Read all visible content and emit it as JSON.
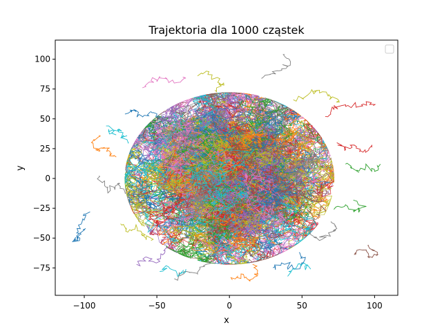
{
  "chart_data": {
    "type": "line",
    "title": "Trajektoria dla 1000 cząstek",
    "xlabel": "x",
    "ylabel": "y",
    "xlim": [
      -120,
      116
    ],
    "ylim": [
      -98,
      116
    ],
    "xticks": [
      -100,
      -50,
      0,
      50,
      100
    ],
    "xtick_labels": [
      "−100",
      "−50",
      "0",
      "50",
      "100"
    ],
    "yticks": [
      -75,
      -50,
      -25,
      0,
      25,
      50,
      75,
      100
    ],
    "ytick_labels": [
      "−75",
      "−50",
      "−25",
      "0",
      "25",
      "50",
      "75",
      "100"
    ],
    "grid": false,
    "legend": {
      "placement": "top-right",
      "entries": []
    },
    "n_trajectories": 1000,
    "colors": [
      "#1f77b4",
      "#ff7f0e",
      "#2ca02c",
      "#d62728",
      "#9467bd",
      "#8c564b",
      "#e377c2",
      "#7f7f7f",
      "#bcbd22",
      "#17becf"
    ],
    "series": [
      {
        "points": [
          [
            -96,
            -28
          ],
          [
            -101,
            -34
          ],
          [
            -105,
            -42
          ],
          [
            -103,
            -50
          ],
          [
            -108,
            -53
          ],
          [
            -103,
            -47
          ],
          [
            -99,
            -42
          ]
        ],
        "color": "#1f77b4"
      },
      {
        "points": [
          [
            -90,
            36
          ],
          [
            -95,
            30
          ],
          [
            -92,
            24
          ],
          [
            -86,
            26
          ],
          [
            -82,
            22
          ],
          [
            -78,
            18
          ]
        ],
        "color": "#ff7f0e"
      },
      {
        "points": [
          [
            -85,
            44
          ],
          [
            -81,
            38
          ],
          [
            -77,
            41
          ],
          [
            -73,
            36
          ],
          [
            -70,
            30
          ]
        ],
        "color": "#17becf"
      },
      {
        "points": [
          [
            -90,
            2
          ],
          [
            -86,
            -6
          ],
          [
            -82,
            -10
          ],
          [
            -76,
            -4
          ],
          [
            -72,
            -12
          ]
        ],
        "color": "#7f7f7f"
      },
      {
        "points": [
          [
            -75,
            -38
          ],
          [
            -70,
            -45
          ],
          [
            -64,
            -40
          ],
          [
            -60,
            -48
          ],
          [
            -54,
            -52
          ]
        ],
        "color": "#bcbd22"
      },
      {
        "points": [
          [
            -64,
            -72
          ],
          [
            -58,
            -66
          ],
          [
            -52,
            -70
          ],
          [
            -46,
            -64
          ],
          [
            -42,
            -58
          ]
        ],
        "color": "#9467bd"
      },
      {
        "points": [
          [
            -38,
            -84
          ],
          [
            -30,
            -78
          ],
          [
            -22,
            -80
          ],
          [
            -16,
            -72
          ],
          [
            -10,
            -66
          ]
        ],
        "color": "#7f7f7f"
      },
      {
        "points": [
          [
            2,
            -85
          ],
          [
            8,
            -80
          ],
          [
            14,
            -86
          ],
          [
            20,
            -80
          ],
          [
            16,
            -72
          ]
        ],
        "color": "#ff7f0e"
      },
      {
        "points": [
          [
            30,
            -75
          ],
          [
            38,
            -72
          ],
          [
            46,
            -76
          ],
          [
            52,
            -68
          ],
          [
            48,
            -62
          ]
        ],
        "color": "#1f77b4"
      },
      {
        "points": [
          [
            56,
            -46
          ],
          [
            62,
            -52
          ],
          [
            68,
            -48
          ],
          [
            74,
            -42
          ],
          [
            70,
            -36
          ]
        ],
        "color": "#7f7f7f"
      },
      {
        "points": [
          [
            86,
            -64
          ],
          [
            92,
            -60
          ],
          [
            98,
            -66
          ],
          [
            102,
            -62
          ],
          [
            96,
            -56
          ]
        ],
        "color": "#8c564b"
      },
      {
        "points": [
          [
            72,
            -26
          ],
          [
            80,
            -22
          ],
          [
            86,
            -28
          ],
          [
            92,
            -24
          ],
          [
            86,
            -18
          ]
        ],
        "color": "#2ca02c"
      },
      {
        "points": [
          [
            80,
            12
          ],
          [
            88,
            6
          ],
          [
            94,
            10
          ],
          [
            100,
            6
          ],
          [
            104,
            12
          ]
        ],
        "color": "#2ca02c"
      },
      {
        "points": [
          [
            74,
            30
          ],
          [
            80,
            24
          ],
          [
            86,
            28
          ],
          [
            92,
            22
          ],
          [
            98,
            26
          ]
        ],
        "color": "#d62728"
      },
      {
        "points": [
          [
            66,
            52
          ],
          [
            72,
            58
          ],
          [
            80,
            62
          ],
          [
            88,
            60
          ],
          [
            96,
            64
          ],
          [
            100,
            62
          ]
        ],
        "color": "#d62728"
      },
      {
        "points": [
          [
            44,
            66
          ],
          [
            54,
            70
          ],
          [
            62,
            74
          ],
          [
            70,
            68
          ],
          [
            76,
            64
          ]
        ],
        "color": "#bcbd22"
      },
      {
        "points": [
          [
            22,
            84
          ],
          [
            30,
            88
          ],
          [
            36,
            92
          ],
          [
            42,
            98
          ],
          [
            38,
            104
          ]
        ],
        "color": "#7f7f7f"
      },
      {
        "points": [
          [
            -22,
            86
          ],
          [
            -16,
            90
          ],
          [
            -10,
            84
          ],
          [
            -4,
            80
          ],
          [
            -10,
            74
          ]
        ],
        "color": "#bcbd22"
      },
      {
        "points": [
          [
            -60,
            76
          ],
          [
            -54,
            82
          ],
          [
            -46,
            84
          ],
          [
            -38,
            80
          ],
          [
            -30,
            84
          ]
        ],
        "color": "#e377c2"
      },
      {
        "points": [
          [
            -72,
            54
          ],
          [
            -66,
            58
          ],
          [
            -60,
            52
          ],
          [
            -54,
            56
          ],
          [
            -48,
            50
          ]
        ],
        "color": "#1f77b4"
      },
      {
        "points": [
          [
            6,
            -58
          ],
          [
            -4,
            -50
          ],
          [
            -12,
            -58
          ],
          [
            -20,
            -52
          ],
          [
            -26,
            -60
          ]
        ],
        "color": "#e377c2"
      },
      {
        "points": [
          [
            40,
            -82
          ],
          [
            44,
            -76
          ],
          [
            50,
            -72
          ],
          [
            56,
            -76
          ]
        ],
        "color": "#17becf"
      },
      {
        "points": [
          [
            -48,
            -78
          ],
          [
            -42,
            -74
          ],
          [
            -36,
            -80
          ],
          [
            -30,
            -76
          ]
        ],
        "color": "#17becf"
      }
    ]
  }
}
